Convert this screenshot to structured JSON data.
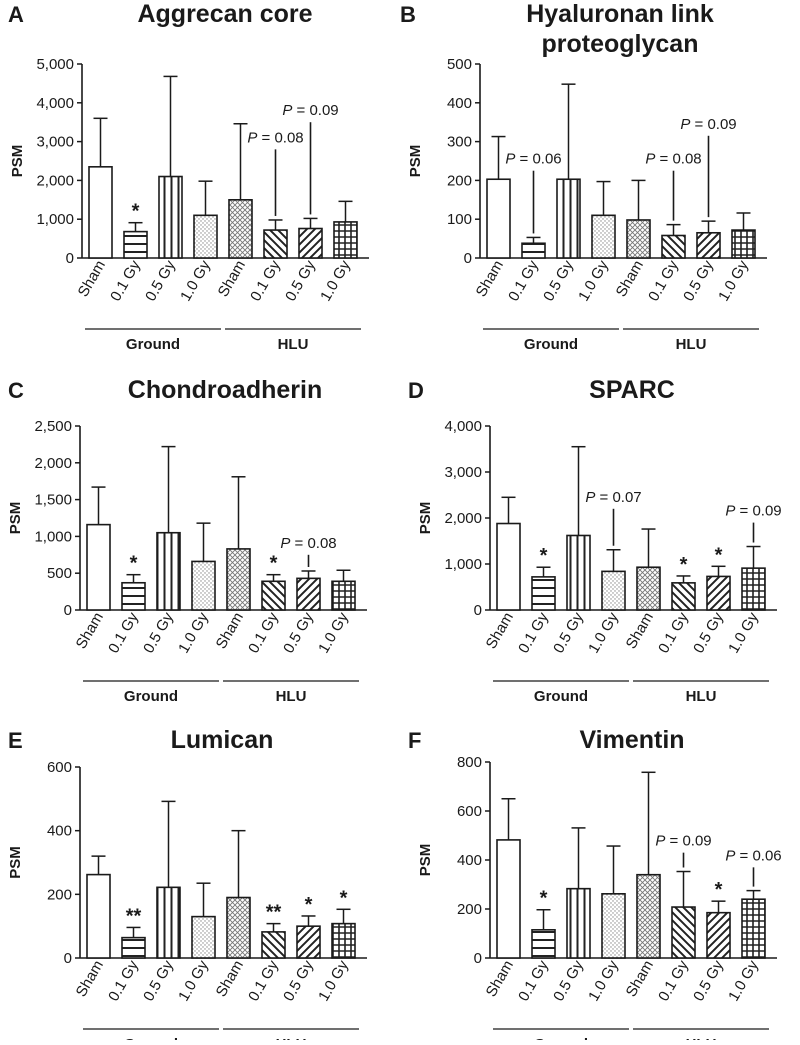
{
  "chart_data": [
    {
      "panel": "A",
      "title": "Aggrecan core",
      "type": "bar",
      "ylabel": "PSM",
      "ylim": [
        0,
        5000
      ],
      "yticks": [
        "0",
        "1,000",
        "2,000",
        "3,000",
        "4,000",
        "5,000"
      ],
      "categories": [
        "Sham",
        "0.1 Gy",
        "0.5 Gy",
        "1.0 Gy",
        "Sham",
        "0.1 Gy",
        "0.5 Gy",
        "1.0 Gy"
      ],
      "groups": [
        "Ground",
        "HLU"
      ],
      "values": [
        2350,
        680,
        2100,
        1100,
        1500,
        720,
        760,
        930
      ],
      "errors": [
        1250,
        230,
        2580,
        880,
        1960,
        260,
        260,
        530
      ],
      "annotations": [
        {
          "bar": 1,
          "text": "*",
          "kind": "star"
        },
        {
          "bar": 5,
          "text": "P = 0.08",
          "kind": "p",
          "level": 2800
        },
        {
          "bar": 6,
          "text": "P = 0.09",
          "kind": "p",
          "level": 3500
        }
      ]
    },
    {
      "panel": "B",
      "title": [
        "Hyaluronan link",
        "proteoglycan"
      ],
      "type": "bar",
      "ylabel": "PSM",
      "ylim": [
        0,
        500
      ],
      "yticks": [
        "0",
        "100",
        "200",
        "300",
        "400",
        "500"
      ],
      "categories": [
        "Sham",
        "0.1 Gy",
        "0.5 Gy",
        "1.0 Gy",
        "Sham",
        "0.1 Gy",
        "0.5 Gy",
        "1.0 Gy"
      ],
      "groups": [
        "Ground",
        "HLU"
      ],
      "values": [
        203,
        38,
        203,
        110,
        98,
        58,
        65,
        72
      ],
      "errors": [
        110,
        15,
        245,
        87,
        102,
        28,
        30,
        44
      ],
      "annotations": [
        {
          "bar": 1,
          "text": "P = 0.06",
          "kind": "p",
          "level": 225
        },
        {
          "bar": 5,
          "text": "P = 0.08",
          "kind": "p",
          "level": 225
        },
        {
          "bar": 6,
          "text": "P = 0.09",
          "kind": "p",
          "level": 315
        }
      ]
    },
    {
      "panel": "C",
      "title": "Chondroadherin",
      "type": "bar",
      "ylabel": "PSM",
      "ylim": [
        0,
        2500
      ],
      "yticks": [
        "0",
        "500",
        "1,000",
        "1,500",
        "2,000",
        "2,500"
      ],
      "categories": [
        "Sham",
        "0.1 Gy",
        "0.5 Gy",
        "1.0 Gy",
        "Sham",
        "0.1 Gy",
        "0.5 Gy",
        "1.0 Gy"
      ],
      "groups": [
        "Ground",
        "HLU"
      ],
      "values": [
        1160,
        370,
        1050,
        660,
        830,
        390,
        430,
        390
      ],
      "errors": [
        510,
        110,
        1170,
        520,
        980,
        90,
        100,
        150
      ],
      "annotations": [
        {
          "bar": 1,
          "text": "*",
          "kind": "star"
        },
        {
          "bar": 5,
          "text": "*",
          "kind": "star"
        },
        {
          "bar": 6,
          "text": "P = 0.08",
          "kind": "p",
          "level": 750
        }
      ]
    },
    {
      "panel": "D",
      "title": "SPARC",
      "type": "bar",
      "ylabel": "PSM",
      "ylim": [
        0,
        4000
      ],
      "yticks": [
        "0",
        "1,000",
        "2,000",
        "3,000",
        "4,000"
      ],
      "categories": [
        "Sham",
        "0.1 Gy",
        "0.5 Gy",
        "1.0 Gy",
        "Sham",
        "0.1 Gy",
        "0.5 Gy",
        "1.0 Gy"
      ],
      "groups": [
        "Ground",
        "HLU"
      ],
      "values": [
        1880,
        720,
        1620,
        840,
        930,
        590,
        730,
        910
      ],
      "errors": [
        570,
        210,
        1930,
        470,
        830,
        150,
        220,
        470
      ],
      "annotations": [
        {
          "bar": 1,
          "text": "*",
          "kind": "star"
        },
        {
          "bar": 3,
          "text": "P = 0.07",
          "kind": "p",
          "level": 2200
        },
        {
          "bar": 5,
          "text": "*",
          "kind": "star"
        },
        {
          "bar": 6,
          "text": "*",
          "kind": "star"
        },
        {
          "bar": 7,
          "text": "P = 0.09",
          "kind": "p",
          "level": 1900
        }
      ]
    },
    {
      "panel": "E",
      "title": "Lumican",
      "type": "bar",
      "ylabel": "PSM",
      "ylim": [
        0,
        600
      ],
      "yticks": [
        "0",
        "200",
        "400",
        "600"
      ],
      "categories": [
        "Sham",
        "0.1 Gy",
        "0.5 Gy",
        "1.0 Gy",
        "Sham",
        "0.1 Gy",
        "0.5 Gy",
        "1.0 Gy"
      ],
      "groups": [
        "Ground",
        "HLU"
      ],
      "values": [
        262,
        64,
        222,
        130,
        190,
        82,
        100,
        108
      ],
      "errors": [
        58,
        32,
        270,
        105,
        210,
        26,
        32,
        45
      ],
      "annotations": [
        {
          "bar": 1,
          "text": "**",
          "kind": "star"
        },
        {
          "bar": 5,
          "text": "**",
          "kind": "star"
        },
        {
          "bar": 6,
          "text": "*",
          "kind": "star"
        },
        {
          "bar": 7,
          "text": "*",
          "kind": "star"
        }
      ]
    },
    {
      "panel": "F",
      "title": "Vimentin",
      "type": "bar",
      "ylabel": "PSM",
      "ylim": [
        0,
        800
      ],
      "yticks": [
        "0",
        "200",
        "400",
        "600",
        "800"
      ],
      "categories": [
        "Sham",
        "0.1 Gy",
        "0.5 Gy",
        "1.0 Gy",
        "Sham",
        "0.1 Gy",
        "0.5 Gy",
        "1.0 Gy"
      ],
      "groups": [
        "Ground",
        "HLU"
      ],
      "values": [
        482,
        115,
        283,
        262,
        340,
        208,
        185,
        240
      ],
      "errors": [
        168,
        82,
        248,
        195,
        418,
        145,
        47,
        35
      ],
      "annotations": [
        {
          "bar": 1,
          "text": "*",
          "kind": "star"
        },
        {
          "bar": 5,
          "text": "P = 0.09",
          "kind": "p",
          "level": 430
        },
        {
          "bar": 6,
          "text": "*",
          "kind": "star"
        },
        {
          "bar": 7,
          "text": "P = 0.06",
          "kind": "p",
          "level": 370
        }
      ]
    }
  ]
}
